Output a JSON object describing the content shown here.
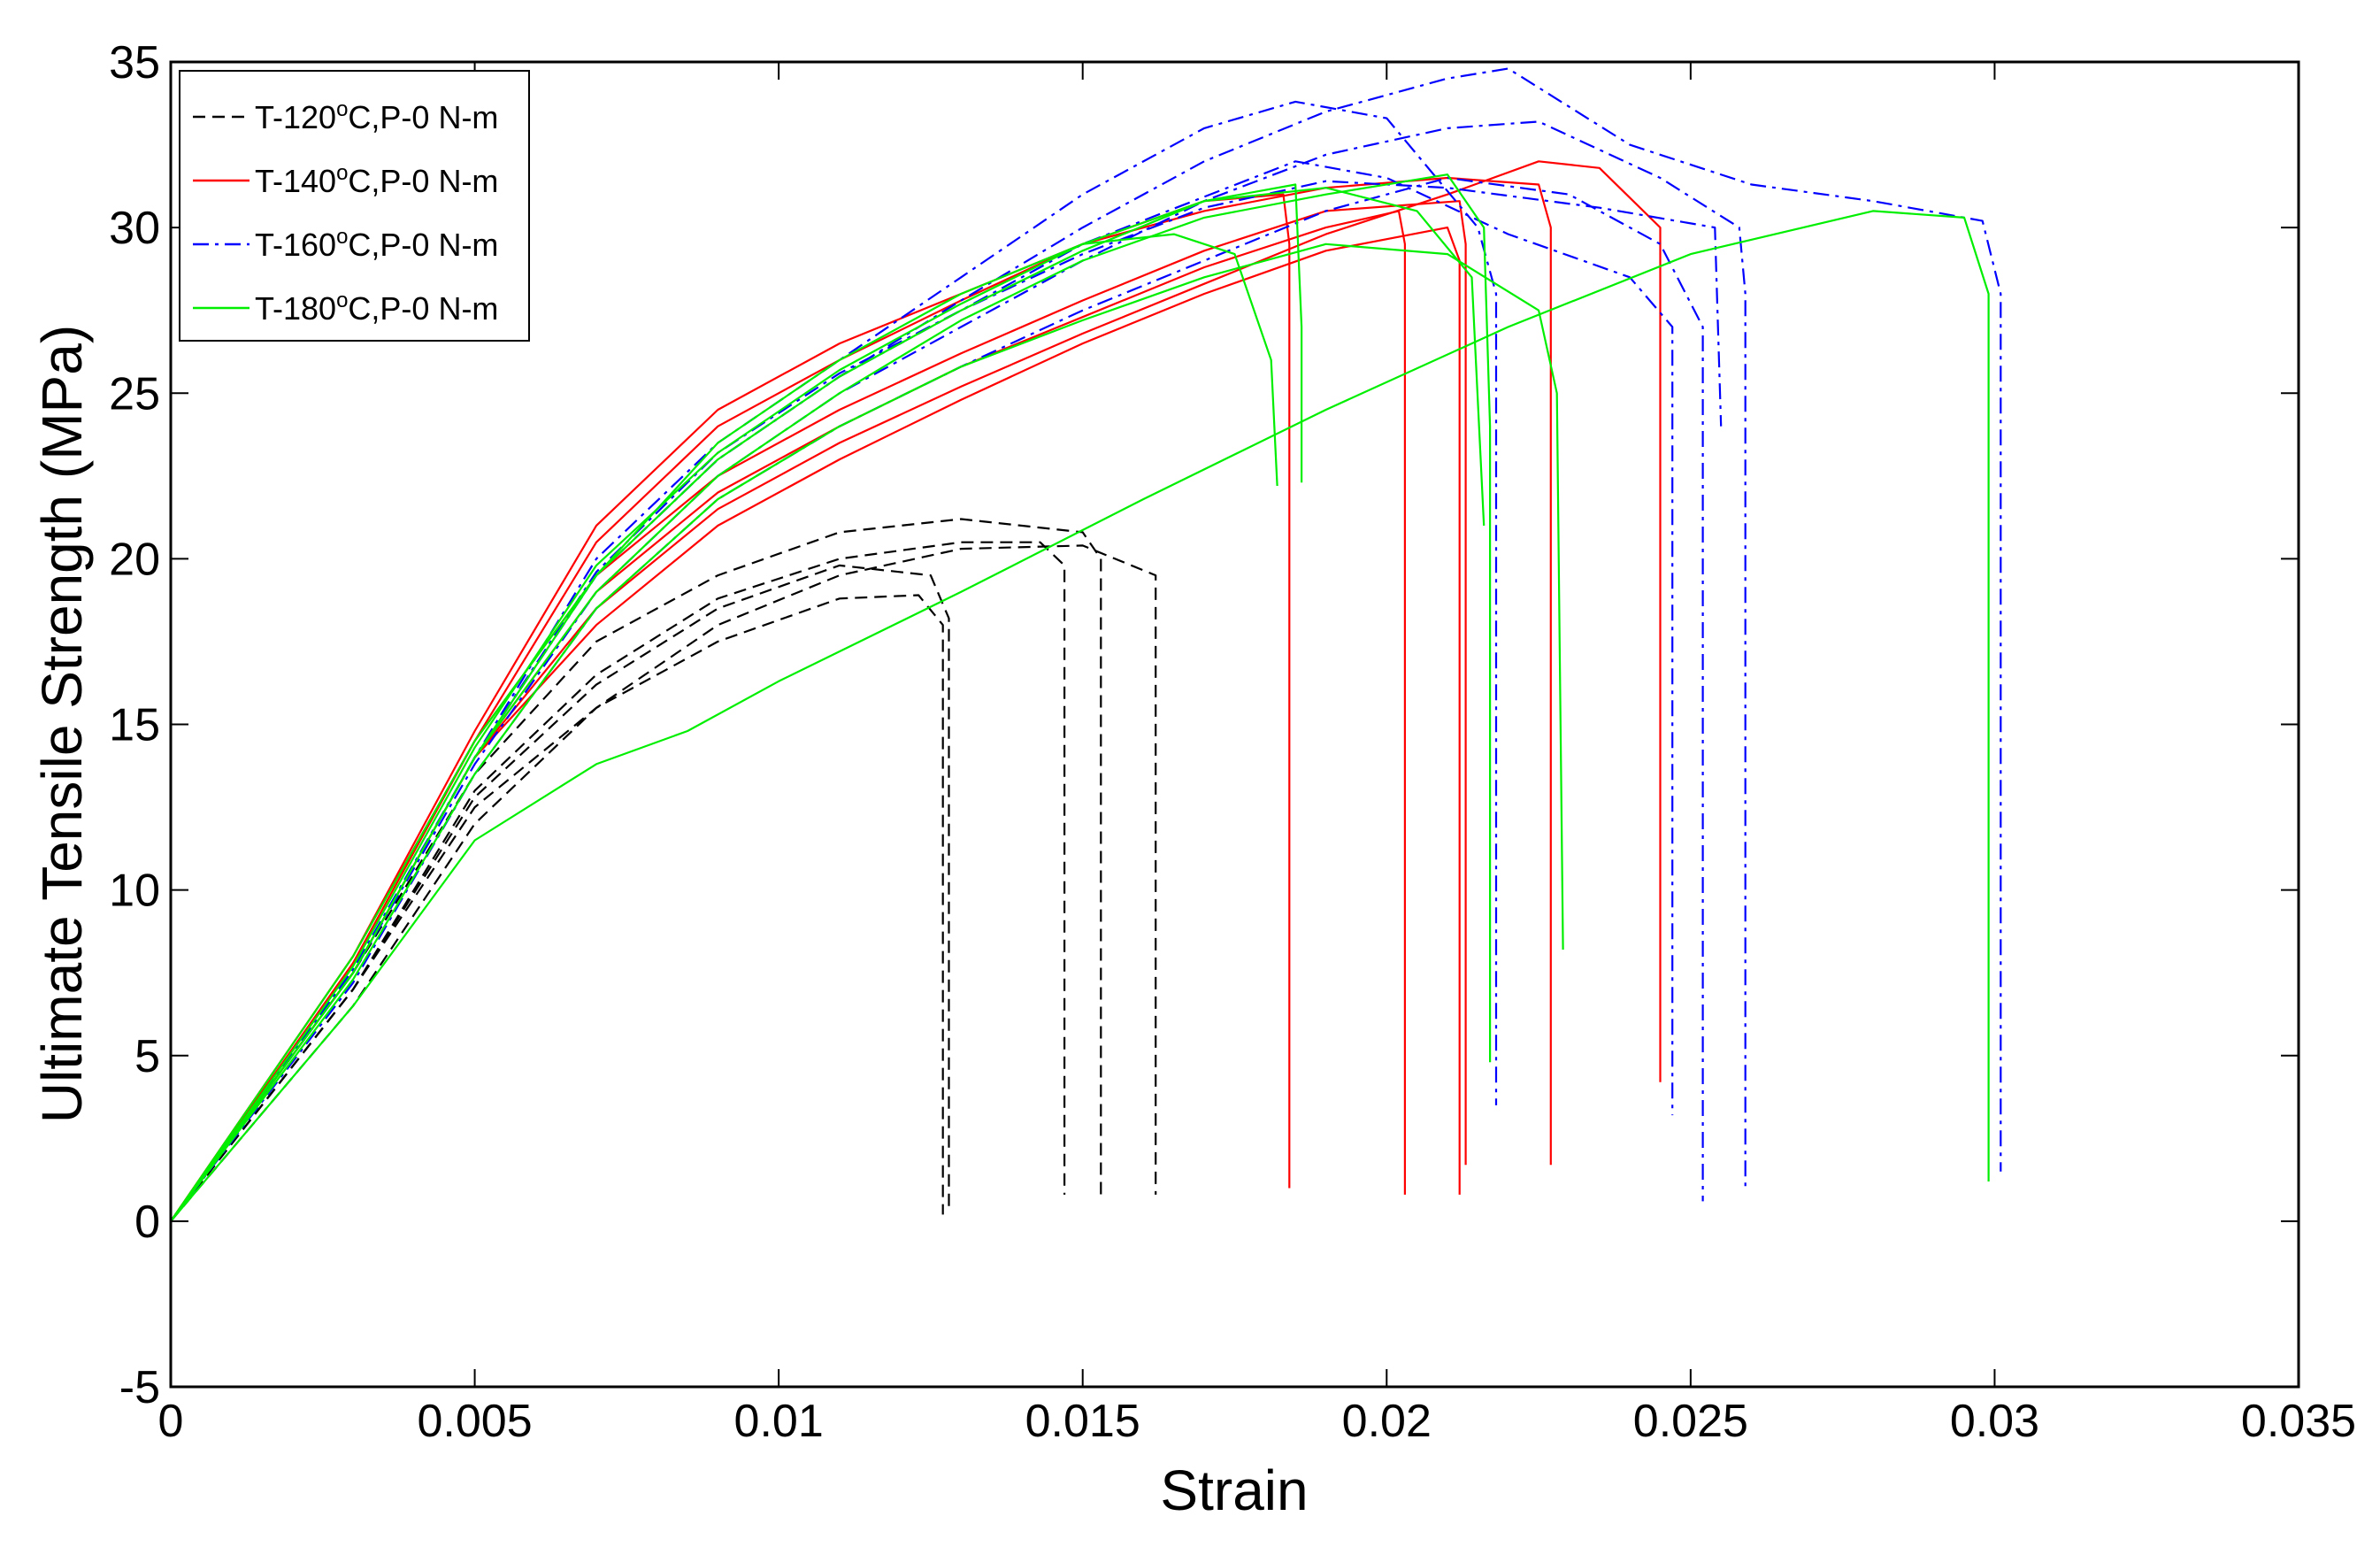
{
  "chart_data": {
    "type": "line",
    "title": "",
    "xlabel": "Strain",
    "ylabel": "Ultimate Tensile Strength (MPa)",
    "xlim": [
      0,
      0.035
    ],
    "ylim": [
      -5,
      35
    ],
    "xticks": [
      0,
      0.005,
      0.01,
      0.015,
      0.02,
      0.025,
      0.03,
      0.035
    ],
    "xtick_labels": [
      "0",
      "0.005",
      "0.01",
      "0.015",
      "0.02",
      "0.025",
      "0.03",
      "0.035"
    ],
    "yticks": [
      -5,
      0,
      5,
      10,
      15,
      20,
      25,
      30,
      35
    ],
    "ytick_labels": [
      "-5",
      "0",
      "5",
      "10",
      "15",
      "20",
      "25",
      "30",
      "35"
    ],
    "grid": false,
    "legend_position": "top-left",
    "legend": [
      {
        "pre": "T-120",
        "sup": "o",
        "post": "C,P-0 N-m",
        "color": "#000000",
        "dash": "dashed"
      },
      {
        "pre": "T-140",
        "sup": "o",
        "post": "C,P-0 N-m",
        "color": "#ff0000",
        "dash": "solid"
      },
      {
        "pre": "T-160",
        "sup": "o",
        "post": "C,P-0 N-m",
        "color": "#0000ff",
        "dash": "dashdot"
      },
      {
        "pre": "T-180",
        "sup": "o",
        "post": "C,P-0 N-m",
        "color": "#00ee00",
        "dash": "solid"
      }
    ],
    "series": [
      {
        "name": "T-120 curve 1",
        "group": 0,
        "x": [
          0,
          0.003,
          0.005,
          0.007,
          0.009,
          0.011,
          0.0123,
          0.0127,
          0.0127
        ],
        "y": [
          0,
          7,
          12.5,
          15.5,
          17.5,
          18.8,
          18.9,
          18,
          0.2
        ]
      },
      {
        "name": "T-120 curve 2",
        "group": 0,
        "x": [
          0,
          0.003,
          0.005,
          0.007,
          0.009,
          0.011,
          0.013,
          0.0143,
          0.0147,
          0.0147
        ],
        "y": [
          0,
          7,
          13,
          16.5,
          18.8,
          20,
          20.5,
          20.5,
          19.8,
          0.8
        ]
      },
      {
        "name": "T-120 curve 3",
        "group": 0,
        "x": [
          0,
          0.003,
          0.005,
          0.007,
          0.009,
          0.011,
          0.013,
          0.015,
          0.0153,
          0.0153
        ],
        "y": [
          0,
          7.5,
          13.5,
          17.5,
          19.5,
          20.8,
          21.2,
          20.8,
          20,
          0.6
        ]
      },
      {
        "name": "T-120 curve 4",
        "group": 0,
        "x": [
          0,
          0.003,
          0.005,
          0.007,
          0.009,
          0.011,
          0.013,
          0.015,
          0.0162,
          0.0162
        ],
        "y": [
          0,
          6.5,
          12,
          15.5,
          18,
          19.5,
          20.3,
          20.4,
          19.5,
          0.8
        ]
      },
      {
        "name": "T-120 curve 5",
        "group": 0,
        "x": [
          0,
          0.003,
          0.005,
          0.007,
          0.009,
          0.011,
          0.0125,
          0.0128,
          0.0128
        ],
        "y": [
          0,
          7,
          12.8,
          16.2,
          18.5,
          19.8,
          19.5,
          18.2,
          0.3
        ]
      },
      {
        "name": "T-140 curve 1",
        "group": 1,
        "x": [
          0,
          0.003,
          0.005,
          0.007,
          0.009,
          0.011,
          0.013,
          0.015,
          0.017,
          0.0183,
          0.0184,
          0.0184
        ],
        "y": [
          0,
          8,
          14.5,
          20.5,
          24,
          26,
          27.8,
          29.5,
          30.8,
          31,
          29.5,
          1
        ]
      },
      {
        "name": "T-140 curve 2",
        "group": 1,
        "x": [
          0,
          0.003,
          0.005,
          0.007,
          0.009,
          0.011,
          0.013,
          0.015,
          0.017,
          0.019,
          0.0202,
          0.0203,
          0.0203
        ],
        "y": [
          0,
          7.5,
          14,
          19,
          22,
          24,
          25.8,
          27.3,
          28.8,
          30,
          30.5,
          29.5,
          0.8
        ]
      },
      {
        "name": "T-140 curve 3",
        "group": 1,
        "x": [
          0,
          0.003,
          0.005,
          0.007,
          0.009,
          0.011,
          0.013,
          0.015,
          0.017,
          0.019,
          0.021,
          0.0212,
          0.0212
        ],
        "y": [
          0,
          7.5,
          14,
          18,
          21,
          23,
          24.8,
          26.5,
          28,
          29.3,
          30,
          29,
          0.8
        ]
      },
      {
        "name": "T-140 curve 4",
        "group": 1,
        "x": [
          0,
          0.003,
          0.005,
          0.007,
          0.009,
          0.011,
          0.013,
          0.015,
          0.017,
          0.019,
          0.021,
          0.0225,
          0.0227,
          0.0227
        ],
        "y": [
          0,
          8,
          14.8,
          21,
          24.5,
          26.5,
          28,
          29.5,
          30.5,
          31.2,
          31.5,
          31.3,
          30,
          1.7
        ]
      },
      {
        "name": "T-140 curve 5",
        "group": 1,
        "x": [
          0,
          0.003,
          0.005,
          0.007,
          0.009,
          0.011,
          0.013,
          0.015,
          0.017,
          0.019,
          0.021,
          0.0225,
          0.0235,
          0.0245,
          0.0245
        ],
        "y": [
          0,
          7.5,
          14,
          18.5,
          21.5,
          23.5,
          25.2,
          26.8,
          28.3,
          29.8,
          31,
          32,
          31.8,
          30,
          4.2
        ]
      },
      {
        "name": "T-140 curve 6",
        "group": 1,
        "x": [
          0,
          0.003,
          0.005,
          0.007,
          0.009,
          0.011,
          0.013,
          0.015,
          0.017,
          0.019,
          0.0212,
          0.0213,
          0.0213
        ],
        "y": [
          0,
          7.8,
          14.5,
          19.5,
          22.5,
          24.5,
          26.2,
          27.8,
          29.3,
          30.5,
          30.8,
          29.5,
          1.7
        ]
      },
      {
        "name": "T-160 curve 1",
        "group": 2,
        "x": [
          0,
          0.003,
          0.005,
          0.007,
          0.009,
          0.011,
          0.013,
          0.015,
          0.017,
          0.0185,
          0.02,
          0.0215,
          0.0218,
          0.0218
        ],
        "y": [
          0,
          7.5,
          14,
          20,
          23.5,
          26,
          28.5,
          31,
          33,
          33.8,
          33.3,
          30,
          28,
          3.5
        ]
      },
      {
        "name": "T-160 curve 2",
        "group": 2,
        "x": [
          0,
          0.003,
          0.005,
          0.007,
          0.009,
          0.011,
          0.013,
          0.015,
          0.017,
          0.019,
          0.021,
          0.022,
          0.024,
          0.026,
          0.028,
          0.0298,
          0.0301,
          0.0301
        ],
        "y": [
          0,
          7.5,
          14,
          19.5,
          23,
          25.5,
          27.8,
          30,
          32,
          33.5,
          34.5,
          34.8,
          32.5,
          31.3,
          30.8,
          30.2,
          28,
          1.5
        ]
      },
      {
        "name": "T-160 curve 3",
        "group": 2,
        "x": [
          0,
          0.003,
          0.005,
          0.007,
          0.009,
          0.011,
          0.013,
          0.015,
          0.017,
          0.019,
          0.021,
          0.0225,
          0.0245,
          0.0258,
          0.0259,
          0.0259
        ],
        "y": [
          0,
          7.5,
          13.8,
          19,
          22.5,
          25,
          27,
          29,
          30.8,
          32.2,
          33,
          33.2,
          31.5,
          30,
          28,
          0.9
        ]
      },
      {
        "name": "T-160 curve 4",
        "group": 2,
        "x": [
          0,
          0.003,
          0.005,
          0.007,
          0.009,
          0.011,
          0.013,
          0.015,
          0.017,
          0.019,
          0.021,
          0.023,
          0.0245,
          0.0252,
          0.0252
        ],
        "y": [
          0,
          7.2,
          13.5,
          18.5,
          21.8,
          24,
          25.8,
          27.5,
          29,
          30.5,
          31.5,
          31,
          29.5,
          27,
          0.6
        ]
      },
      {
        "name": "T-160 curve 5",
        "group": 2,
        "x": [
          0,
          0.003,
          0.005,
          0.007,
          0.009,
          0.011,
          0.013,
          0.015,
          0.0185,
          0.02,
          0.022,
          0.024,
          0.0247,
          0.0247
        ],
        "y": [
          0,
          7.5,
          14,
          19.5,
          23,
          25.5,
          27.5,
          29.5,
          32,
          31.5,
          29.8,
          28.5,
          27,
          3.2
        ]
      },
      {
        "name": "T-160 curve 6",
        "group": 2,
        "x": [
          0,
          0.003,
          0.005,
          0.007,
          0.009,
          0.011,
          0.013,
          0.015,
          0.017,
          0.019,
          0.021,
          0.0235,
          0.0254,
          0.0255
        ],
        "y": [
          0,
          7.6,
          14,
          19.6,
          23.2,
          25.6,
          27.5,
          29.2,
          30.6,
          31.4,
          31.2,
          30.6,
          30,
          24
        ]
      },
      {
        "name": "T-180 curve 1",
        "group": 3,
        "x": [
          0,
          0.003,
          0.005,
          0.007,
          0.009,
          0.011,
          0.013,
          0.015,
          0.0165,
          0.0175,
          0.0181,
          0.0182
        ],
        "y": [
          0,
          8,
          14.5,
          19.5,
          23.5,
          26,
          28,
          29.5,
          29.8,
          29.2,
          26,
          22.2
        ]
      },
      {
        "name": "T-180 curve 2",
        "group": 3,
        "x": [
          0,
          0.003,
          0.005,
          0.007,
          0.009,
          0.011,
          0.013,
          0.015,
          0.017,
          0.0185,
          0.0186,
          0.0186
        ],
        "y": [
          0,
          7.5,
          14,
          19.5,
          23,
          25.5,
          27.5,
          29.3,
          30.8,
          31.3,
          27,
          22.3
        ]
      },
      {
        "name": "T-180 curve 3",
        "group": 3,
        "x": [
          0,
          0.003,
          0.005,
          0.007,
          0.009,
          0.011,
          0.013,
          0.015,
          0.017,
          0.019,
          0.021,
          0.0216,
          0.0217,
          0.0217
        ],
        "y": [
          0,
          7.5,
          14,
          19,
          22.5,
          25,
          27.2,
          29,
          30.3,
          31,
          31.6,
          30,
          24,
          4.8
        ]
      },
      {
        "name": "T-180 curve 4",
        "group": 3,
        "x": [
          0,
          0.003,
          0.005,
          0.007,
          0.009,
          0.011,
          0.013,
          0.015,
          0.017,
          0.019,
          0.021,
          0.0225,
          0.0228,
          0.0229
        ],
        "y": [
          0,
          7.3,
          13.5,
          18.5,
          21.8,
          24,
          25.8,
          27.2,
          28.5,
          29.5,
          29.2,
          27.5,
          25,
          8.2
        ]
      },
      {
        "name": "T-180 curve 5",
        "group": 3,
        "x": [
          0,
          0.003,
          0.005,
          0.007,
          0.0085,
          0.01,
          0.013,
          0.016,
          0.019,
          0.022,
          0.025,
          0.028,
          0.0295,
          0.0299,
          0.0299
        ],
        "y": [
          0,
          6.5,
          11.5,
          13.8,
          14.8,
          16.3,
          19,
          21.8,
          24.5,
          27,
          29.2,
          30.5,
          30.3,
          28,
          1.2
        ]
      },
      {
        "name": "T-180 curve 6",
        "group": 3,
        "x": [
          0,
          0.003,
          0.005,
          0.007,
          0.009,
          0.011,
          0.013,
          0.015,
          0.017,
          0.019,
          0.0205,
          0.0214,
          0.0216
        ],
        "y": [
          0,
          7.7,
          14.3,
          19.8,
          23.2,
          25.7,
          27.7,
          29.5,
          30.8,
          31.2,
          30.5,
          28.5,
          21
        ]
      }
    ]
  }
}
